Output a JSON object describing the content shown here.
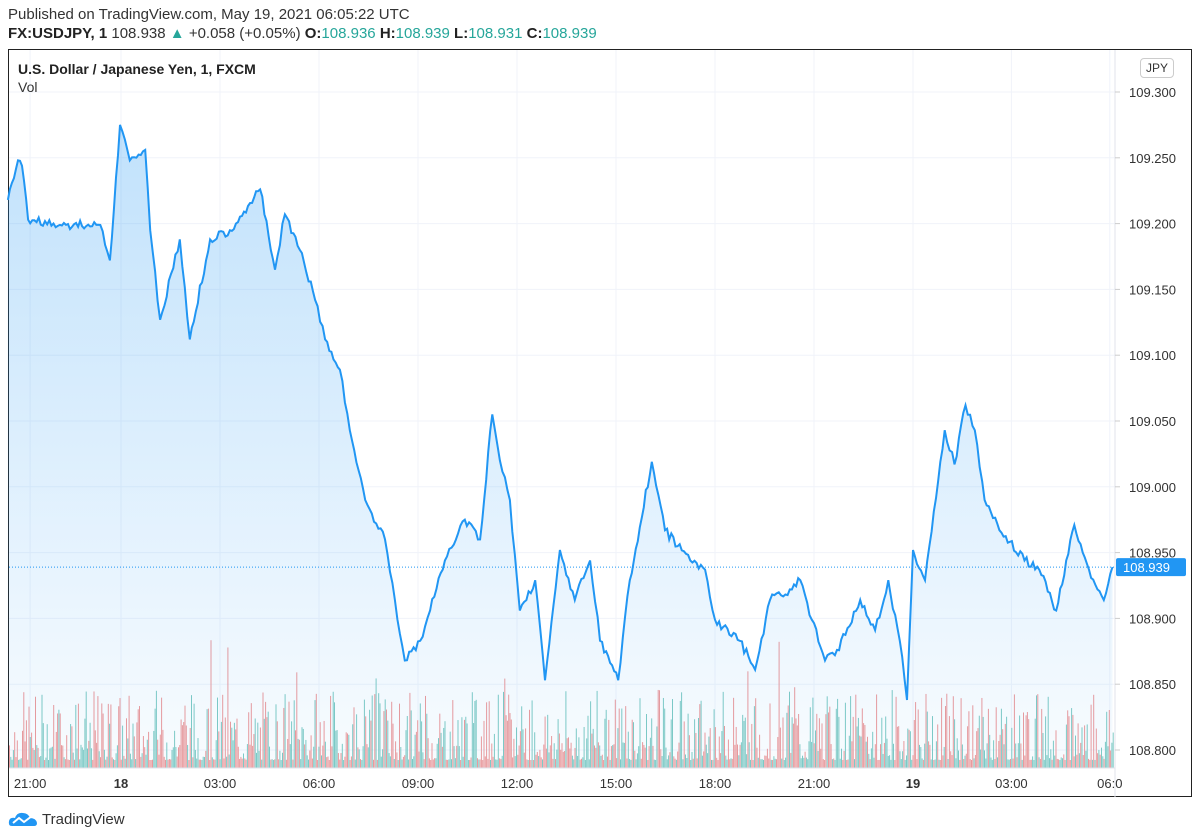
{
  "published": "Published on TradingView.com, May 19, 2021 06:05:22 UTC",
  "header": {
    "symbol": "FX:USDJPY, 1",
    "price": "108.938",
    "change": "+0.058 (+0.05%)",
    "o_label": "O:",
    "o": "108.936",
    "h_label": "H:",
    "h": "108.939",
    "l_label": "L:",
    "l": "108.931",
    "c_label": "C:",
    "c": "108.939"
  },
  "legend": {
    "title": "U.S. Dollar / Japanese Yen, 1, FXCM",
    "vol": "Vol"
  },
  "currency_button": "JPY",
  "brand": "TradingView",
  "colors": {
    "line": "#2196f3",
    "up": "#26a69a",
    "down": "#ef5350",
    "last_price_bg": "#2196f3"
  },
  "chart_data": {
    "type": "area",
    "ylim": [
      108.79,
      109.33
    ],
    "y_ticks": [
      "109.300",
      "109.250",
      "109.200",
      "109.150",
      "109.100",
      "109.050",
      "109.000",
      "108.950",
      "108.900",
      "108.850",
      "108.800"
    ],
    "x_ticks": [
      {
        "label": "21:00",
        "t": "17 21:00",
        "bold": false
      },
      {
        "label": "18",
        "t": "18 00:00",
        "bold": true
      },
      {
        "label": "03:00",
        "t": "18 03:00",
        "bold": false
      },
      {
        "label": "06:00",
        "t": "18 06:00",
        "bold": false
      },
      {
        "label": "09:00",
        "t": "18 09:00",
        "bold": false
      },
      {
        "label": "12:00",
        "t": "18 12:00",
        "bold": false
      },
      {
        "label": "15:00",
        "t": "18 15:00",
        "bold": false
      },
      {
        "label": "18:00",
        "t": "18 18:00",
        "bold": false
      },
      {
        "label": "21:00",
        "t": "18 21:00",
        "bold": false
      },
      {
        "label": "19",
        "t": "19 00:00",
        "bold": true
      },
      {
        "label": "03:00",
        "t": "19 03:00",
        "bold": false
      },
      {
        "label": "06:0",
        "t": "19 06:00",
        "bold": false
      }
    ],
    "last_price": "108.939",
    "series": [
      [
        "17 20:16",
        109.218
      ],
      [
        "17 20:36",
        109.248
      ],
      [
        "17 20:44",
        109.244
      ],
      [
        "17 20:56",
        109.203
      ],
      [
        "17 21:59",
        109.199
      ],
      [
        "17 23:19",
        109.199
      ],
      [
        "17 23:38",
        109.172
      ],
      [
        "17 23:58",
        109.275
      ],
      [
        "18 00:16",
        109.248
      ],
      [
        "18 00:44",
        109.256
      ],
      [
        "18 00:53",
        109.195
      ],
      [
        "18 01:11",
        109.127
      ],
      [
        "18 01:47",
        109.188
      ],
      [
        "18 02:05",
        109.112
      ],
      [
        "18 02:42",
        109.188
      ],
      [
        "18 03:18",
        109.195
      ],
      [
        "18 04:13",
        109.226
      ],
      [
        "18 04:40",
        109.165
      ],
      [
        "18 04:58",
        109.207
      ],
      [
        "18 05:25",
        109.18
      ],
      [
        "18 05:53",
        109.142
      ],
      [
        "18 06:11",
        109.112
      ],
      [
        "18 06:38",
        109.089
      ],
      [
        "18 06:56",
        109.043
      ],
      [
        "18 07:24",
        108.99
      ],
      [
        "18 08:00",
        108.96
      ],
      [
        "18 08:18",
        108.914
      ],
      [
        "18 08:36",
        108.868
      ],
      [
        "18 09:04",
        108.883
      ],
      [
        "18 09:22",
        108.906
      ],
      [
        "18 09:49",
        108.944
      ],
      [
        "18 10:25",
        108.975
      ],
      [
        "18 10:53",
        108.96
      ],
      [
        "18 11:15",
        109.055
      ],
      [
        "18 11:29",
        109.02
      ],
      [
        "18 11:47",
        108.99
      ],
      [
        "18 12:05",
        108.906
      ],
      [
        "18 12:33",
        108.929
      ],
      [
        "18 12:51",
        108.853
      ],
      [
        "18 13:18",
        108.952
      ],
      [
        "18 13:45",
        108.914
      ],
      [
        "18 14:13",
        108.944
      ],
      [
        "18 14:31",
        108.883
      ],
      [
        "18 15:04",
        108.853
      ],
      [
        "18 15:25",
        108.929
      ],
      [
        "18 16:05",
        109.019
      ],
      [
        "18 16:29",
        108.967
      ],
      [
        "18 17:15",
        108.944
      ],
      [
        "18 17:42",
        108.937
      ],
      [
        "18 18:00",
        108.899
      ],
      [
        "18 18:45",
        108.883
      ],
      [
        "18 19:13",
        108.861
      ],
      [
        "18 19:40",
        108.914
      ],
      [
        "18 20:16",
        108.922
      ],
      [
        "18 20:35",
        108.929
      ],
      [
        "18 20:56",
        108.899
      ],
      [
        "18 21:20",
        108.868
      ],
      [
        "18 21:38",
        108.872
      ],
      [
        "18 22:24",
        108.914
      ],
      [
        "18 22:51",
        108.891
      ],
      [
        "18 23:15",
        108.929
      ],
      [
        "18 23:36",
        108.883
      ],
      [
        "18 23:49",
        108.838
      ],
      [
        "19 00:00",
        108.952
      ],
      [
        "19 00:22",
        108.929
      ],
      [
        "19 00:58",
        109.043
      ],
      [
        "19 01:16",
        109.017
      ],
      [
        "19 01:36",
        109.062
      ],
      [
        "19 01:53",
        109.043
      ],
      [
        "19 02:11",
        108.99
      ],
      [
        "19 02:38",
        108.967
      ],
      [
        "19 03:24",
        108.944
      ],
      [
        "19 03:51",
        108.937
      ],
      [
        "19 04:22",
        108.906
      ],
      [
        "19 04:55",
        108.971
      ],
      [
        "19 05:22",
        108.937
      ],
      [
        "19 05:49",
        108.914
      ],
      [
        "19 06:05",
        108.939
      ]
    ]
  }
}
